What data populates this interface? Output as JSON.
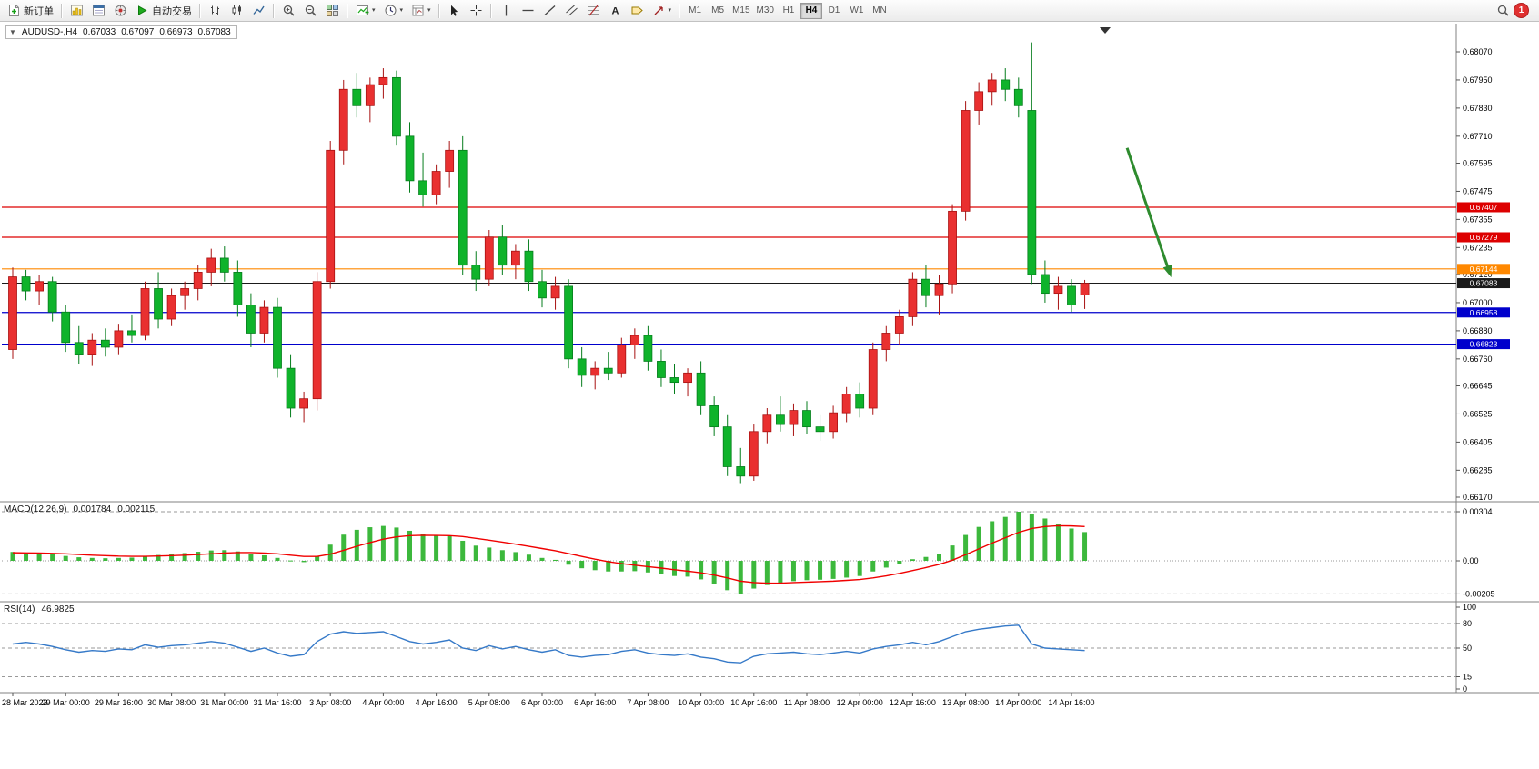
{
  "toolbar": {
    "new_order": "新订单",
    "auto_trading": "自动交易",
    "timeframes": [
      "M1",
      "M5",
      "M15",
      "M30",
      "H1",
      "H4",
      "D1",
      "W1",
      "MN"
    ],
    "active_timeframe": "H4",
    "notification_count": "1"
  },
  "chart": {
    "symbol_period": "AUDUSD-,H4",
    "open": "0.67033",
    "high": "0.67097",
    "low": "0.66973",
    "close": "0.67083"
  },
  "chart_data": {
    "type": "candlestick",
    "symbol": "AUDUSD-",
    "period": "H4",
    "price_axis": {
      "min": 0.6617,
      "max": 0.6807,
      "ticks": [
        "0.68070",
        "0.67950",
        "0.67830",
        "0.67710",
        "0.67595",
        "0.67475",
        "0.67355",
        "0.67235",
        "0.67120",
        "0.67000",
        "0.66880",
        "0.66760",
        "0.66645",
        "0.66525",
        "0.66405",
        "0.66285",
        "0.66170"
      ]
    },
    "label_step": 4,
    "x_labels": [
      "28 Mar 2023",
      "29 Mar 00:00",
      "29 Mar 16:00",
      "30 Mar 08:00",
      "31 Mar 00:00",
      "31 Mar 16:00",
      "3 Apr 08:00",
      "4 Apr 00:00",
      "4 Apr 16:00",
      "5 Apr 08:00",
      "6 Apr 00:00",
      "6 Apr 16:00",
      "7 Apr 08:00",
      "10 Apr 00:00",
      "10 Apr 16:00",
      "11 Apr 08:00",
      "12 Apr 00:00",
      "12 Apr 16:00",
      "13 Apr 08:00",
      "14 Apr 00:00",
      "14 Apr 16:00"
    ],
    "colors": {
      "bull": "#e93030",
      "bull_border": "#a81212",
      "bear": "#0fb32b",
      "bear_border": "#067d1d",
      "macd_hist": "#3cb83c",
      "macd_signal": "#f00000",
      "rsi": "#3579c8"
    },
    "levels": [
      {
        "price": 0.67407,
        "label": "0.67407",
        "color": "#dd0000",
        "current": false
      },
      {
        "price": 0.67279,
        "label": "0.67279",
        "color": "#dd0000",
        "current": false
      },
      {
        "price": 0.67144,
        "label": "0.67144",
        "color": "#ff8800",
        "current": false
      },
      {
        "price": 0.67083,
        "label": "0.67083",
        "color": "#1a1a1a",
        "current": true
      },
      {
        "price": 0.66958,
        "label": "0.66958",
        "color": "#0000cc",
        "current": false
      },
      {
        "price": 0.66823,
        "label": "0.66823",
        "color": "#0000cc",
        "current": false
      }
    ],
    "annotation_arrow": {
      "from_index": 84.2,
      "from_price": 0.6766,
      "to_index": 87.4,
      "to_price": 0.6713,
      "color": "#2e8b2e"
    },
    "candles": [
      [
        0.668,
        0.6715,
        0.6676,
        0.6711
      ],
      [
        0.6711,
        0.6714,
        0.6701,
        0.6705
      ],
      [
        0.6705,
        0.6712,
        0.6699,
        0.6709
      ],
      [
        0.6709,
        0.6711,
        0.6692,
        0.6696
      ],
      [
        0.6696,
        0.6699,
        0.6679,
        0.6683
      ],
      [
        0.6683,
        0.669,
        0.6674,
        0.6678
      ],
      [
        0.6678,
        0.6687,
        0.6673,
        0.6684
      ],
      [
        0.6684,
        0.6689,
        0.6677,
        0.6681
      ],
      [
        0.6681,
        0.6691,
        0.6678,
        0.6688
      ],
      [
        0.6688,
        0.6695,
        0.6683,
        0.6686
      ],
      [
        0.6686,
        0.6709,
        0.6684,
        0.6706
      ],
      [
        0.6706,
        0.6713,
        0.6689,
        0.6693
      ],
      [
        0.6693,
        0.6706,
        0.669,
        0.6703
      ],
      [
        0.6703,
        0.6709,
        0.6697,
        0.6706
      ],
      [
        0.6706,
        0.6716,
        0.6701,
        0.6713
      ],
      [
        0.6713,
        0.6723,
        0.6707,
        0.6719
      ],
      [
        0.6719,
        0.6724,
        0.6709,
        0.6713
      ],
      [
        0.6713,
        0.6718,
        0.6694,
        0.6699
      ],
      [
        0.6699,
        0.6704,
        0.6681,
        0.6687
      ],
      [
        0.6687,
        0.6701,
        0.6683,
        0.6698
      ],
      [
        0.6698,
        0.6702,
        0.6668,
        0.6672
      ],
      [
        0.6672,
        0.6678,
        0.6651,
        0.6655
      ],
      [
        0.6655,
        0.6662,
        0.6649,
        0.6659
      ],
      [
        0.6659,
        0.6713,
        0.6654,
        0.6709
      ],
      [
        0.6709,
        0.6769,
        0.6706,
        0.6765
      ],
      [
        0.6765,
        0.6795,
        0.6759,
        0.6791
      ],
      [
        0.6791,
        0.6798,
        0.6779,
        0.6784
      ],
      [
        0.6784,
        0.6796,
        0.6777,
        0.6793
      ],
      [
        0.6793,
        0.68,
        0.6787,
        0.6796
      ],
      [
        0.6796,
        0.6799,
        0.6767,
        0.6771
      ],
      [
        0.6771,
        0.6777,
        0.6747,
        0.6752
      ],
      [
        0.6752,
        0.6764,
        0.6741,
        0.6746
      ],
      [
        0.6746,
        0.6759,
        0.6742,
        0.6756
      ],
      [
        0.6756,
        0.6769,
        0.6749,
        0.6765
      ],
      [
        0.6765,
        0.6771,
        0.6712,
        0.6716
      ],
      [
        0.6716,
        0.6722,
        0.6705,
        0.671
      ],
      [
        0.671,
        0.6731,
        0.6707,
        0.6728
      ],
      [
        0.6728,
        0.6733,
        0.6712,
        0.6716
      ],
      [
        0.6716,
        0.6725,
        0.671,
        0.6722
      ],
      [
        0.6722,
        0.6727,
        0.6705,
        0.6709
      ],
      [
        0.6709,
        0.6714,
        0.6698,
        0.6702
      ],
      [
        0.6702,
        0.6711,
        0.6697,
        0.6707
      ],
      [
        0.6707,
        0.671,
        0.6672,
        0.6676
      ],
      [
        0.6676,
        0.6681,
        0.6664,
        0.6669
      ],
      [
        0.6669,
        0.6675,
        0.6663,
        0.6672
      ],
      [
        0.6672,
        0.6679,
        0.6667,
        0.667
      ],
      [
        0.667,
        0.6685,
        0.6668,
        0.6682
      ],
      [
        0.6682,
        0.6689,
        0.6676,
        0.6686
      ],
      [
        0.6686,
        0.669,
        0.6671,
        0.6675
      ],
      [
        0.6675,
        0.668,
        0.6664,
        0.6668
      ],
      [
        0.6668,
        0.6674,
        0.6661,
        0.6666
      ],
      [
        0.6666,
        0.6672,
        0.666,
        0.667
      ],
      [
        0.667,
        0.6675,
        0.6652,
        0.6656
      ],
      [
        0.6656,
        0.666,
        0.6643,
        0.6647
      ],
      [
        0.6647,
        0.6652,
        0.6626,
        0.663
      ],
      [
        0.663,
        0.6638,
        0.6623,
        0.6626
      ],
      [
        0.6626,
        0.6648,
        0.6624,
        0.6645
      ],
      [
        0.6645,
        0.6655,
        0.664,
        0.6652
      ],
      [
        0.6652,
        0.666,
        0.6645,
        0.6648
      ],
      [
        0.6648,
        0.6657,
        0.6643,
        0.6654
      ],
      [
        0.6654,
        0.6658,
        0.6644,
        0.6647
      ],
      [
        0.6647,
        0.6652,
        0.6641,
        0.6645
      ],
      [
        0.6645,
        0.6656,
        0.6642,
        0.6653
      ],
      [
        0.6653,
        0.6664,
        0.6649,
        0.6661
      ],
      [
        0.6661,
        0.6666,
        0.6651,
        0.6655
      ],
      [
        0.6655,
        0.6683,
        0.6652,
        0.668
      ],
      [
        0.668,
        0.669,
        0.6675,
        0.6687
      ],
      [
        0.6687,
        0.6697,
        0.6682,
        0.6694
      ],
      [
        0.6694,
        0.6713,
        0.669,
        0.671
      ],
      [
        0.671,
        0.6716,
        0.6698,
        0.6703
      ],
      [
        0.6703,
        0.6712,
        0.6695,
        0.6708
      ],
      [
        0.6708,
        0.6742,
        0.6704,
        0.6739
      ],
      [
        0.6739,
        0.6786,
        0.6735,
        0.6782
      ],
      [
        0.6782,
        0.6794,
        0.6776,
        0.679
      ],
      [
        0.679,
        0.6798,
        0.6784,
        0.6795
      ],
      [
        0.6795,
        0.68,
        0.6786,
        0.6791
      ],
      [
        0.6791,
        0.6796,
        0.6779,
        0.6784
      ],
      [
        0.6782,
        0.6811,
        0.6708,
        0.6712
      ],
      [
        0.6712,
        0.6718,
        0.67,
        0.6704
      ],
      [
        0.6704,
        0.6711,
        0.6697,
        0.6707
      ],
      [
        0.6707,
        0.671,
        0.6696,
        0.6699
      ],
      [
        0.67033,
        0.67097,
        0.66973,
        0.67083
      ]
    ],
    "macd": {
      "name": "MACD(12,26,9)",
      "value": "0.001784",
      "signal_value": "0.002115",
      "axis_ticks": [
        0.00304,
        0,
        -0.00205
      ],
      "axis_labels": [
        "0.00304",
        "0.00",
        "-0.00205"
      ],
      "histogram": [
        0.00055,
        0.0005,
        0.00046,
        0.0004,
        0.0003,
        0.00022,
        0.00018,
        0.00016,
        0.00018,
        0.0002,
        0.00028,
        0.00036,
        0.00042,
        0.00048,
        0.00056,
        0.00064,
        0.00066,
        0.00058,
        0.00044,
        0.00034,
        0.00018,
        2e-05,
        -8e-05,
        0.00028,
        0.001,
        0.00162,
        0.00192,
        0.00208,
        0.00216,
        0.00206,
        0.00186,
        0.00166,
        0.00156,
        0.00152,
        0.00124,
        0.00094,
        0.00082,
        0.00066,
        0.00054,
        0.00038,
        0.00018,
        6e-05,
        -0.00024,
        -0.00046,
        -0.00058,
        -0.00066,
        -0.00066,
        -0.00064,
        -0.00072,
        -0.00084,
        -0.00094,
        -0.00098,
        -0.00115,
        -0.00142,
        -0.00182,
        -0.00205,
        -0.00172,
        -0.0015,
        -0.00136,
        -0.00126,
        -0.0012,
        -0.00117,
        -0.00112,
        -0.00104,
        -0.00094,
        -0.00066,
        -0.00042,
        -0.00018,
        0.0001,
        0.00024,
        0.0004,
        0.00095,
        0.0016,
        0.0021,
        0.00245,
        0.00272,
        0.00304,
        0.00288,
        0.00262,
        0.0023,
        0.002,
        0.00178
      ],
      "signal": [
        0.0005,
        0.00049,
        0.00048,
        0.00046,
        0.00043,
        0.00039,
        0.00035,
        0.00032,
        0.00029,
        0.00028,
        0.00028,
        0.0003,
        0.00032,
        0.00035,
        0.00039,
        0.00043,
        0.00048,
        0.00051,
        0.00051,
        0.00048,
        0.00043,
        0.00035,
        0.00027,
        0.00027,
        0.00041,
        0.00065,
        0.0009,
        0.00113,
        0.00134,
        0.00148,
        0.00156,
        0.00158,
        0.00157,
        0.00156,
        0.0015,
        0.00139,
        0.00128,
        0.00116,
        0.00103,
        0.0009,
        0.00076,
        0.00062,
        0.00045,
        0.00027,
        0.0001,
        -5e-05,
        -0.00017,
        -0.00027,
        -0.00036,
        -0.00045,
        -0.00055,
        -0.00064,
        -0.00074,
        -0.00088,
        -0.00106,
        -0.00126,
        -0.00135,
        -0.00138,
        -0.00138,
        -0.00135,
        -0.00132,
        -0.00129,
        -0.00126,
        -0.00121,
        -0.00116,
        -0.00106,
        -0.00093,
        -0.00078,
        -0.0006,
        -0.00042,
        -0.00022,
        4e-05,
        0.00038,
        0.00074,
        0.0011,
        0.00143,
        0.00176,
        0.002,
        0.00212,
        0.00217,
        0.00216,
        0.00212
      ]
    },
    "rsi": {
      "name": "RSI(14)",
      "value": "46.9825",
      "levels": [
        80,
        50,
        15
      ],
      "axis_labels": [
        "100",
        "80",
        "50",
        "15",
        "0"
      ],
      "values": [
        55,
        57,
        55,
        52,
        48,
        45,
        47,
        46,
        49,
        48,
        54,
        51,
        53,
        54,
        56,
        58,
        56,
        51,
        46,
        50,
        44,
        40,
        42,
        58,
        67,
        70,
        68,
        69,
        70,
        64,
        58,
        55,
        57,
        60,
        50,
        47,
        53,
        49,
        52,
        48,
        45,
        48,
        41,
        39,
        41,
        42,
        46,
        48,
        44,
        42,
        41,
        43,
        39,
        37,
        33,
        32,
        40,
        43,
        44,
        45,
        43,
        42,
        44,
        46,
        44,
        49,
        52,
        54,
        57,
        54,
        58,
        64,
        70,
        73,
        75,
        77,
        78,
        55,
        50,
        49,
        48,
        47
      ]
    }
  }
}
